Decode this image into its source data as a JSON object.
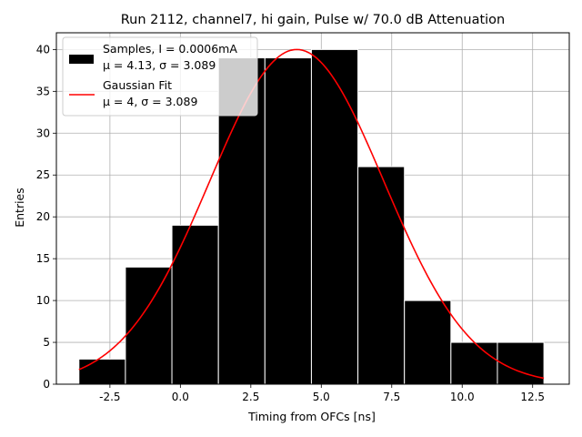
{
  "chart_data": {
    "type": "bar",
    "title": "Run 2112, channel7, hi gain, Pulse w/ 70.0 dB Attenuation",
    "xlabel": "Timing from OFCs [ns]",
    "ylabel": "Entries",
    "xlim": [
      -4.4,
      13.8
    ],
    "ylim": [
      0,
      42
    ],
    "grid": true,
    "legend_placement": "top-left",
    "x_ticks": [
      "-2.5",
      "0.0",
      "2.5",
      "5.0",
      "7.5",
      "10.0",
      "12.5"
    ],
    "x_tick_values": [
      -2.5,
      0,
      2.5,
      5,
      7.5,
      10,
      12.5
    ],
    "y_ticks": [
      "0",
      "5",
      "10",
      "15",
      "20",
      "25",
      "30",
      "35",
      "40"
    ],
    "y_tick_values": [
      0,
      5,
      10,
      15,
      20,
      25,
      30,
      35,
      40
    ],
    "histogram": {
      "name_line1": "Samples, I = 0.0006mA",
      "name_line2": "μ = 4.13, σ = 3.089",
      "color": "#000000",
      "bin_edges": [
        -3.6,
        -1.95,
        -0.3,
        1.35,
        3.0,
        4.65,
        6.3,
        7.95,
        9.6,
        11.25,
        12.9
      ],
      "counts": [
        3,
        14,
        19,
        39,
        39,
        40,
        26,
        10,
        5,
        5
      ]
    },
    "fit": {
      "name_line1": "Gaussian Fit",
      "name_line2": "μ = 4, σ = 3.089",
      "color": "#ff0000",
      "amplitude": 40,
      "mu": 4.13,
      "sigma": 3.089,
      "x_range": [
        -3.6,
        12.9
      ]
    }
  }
}
